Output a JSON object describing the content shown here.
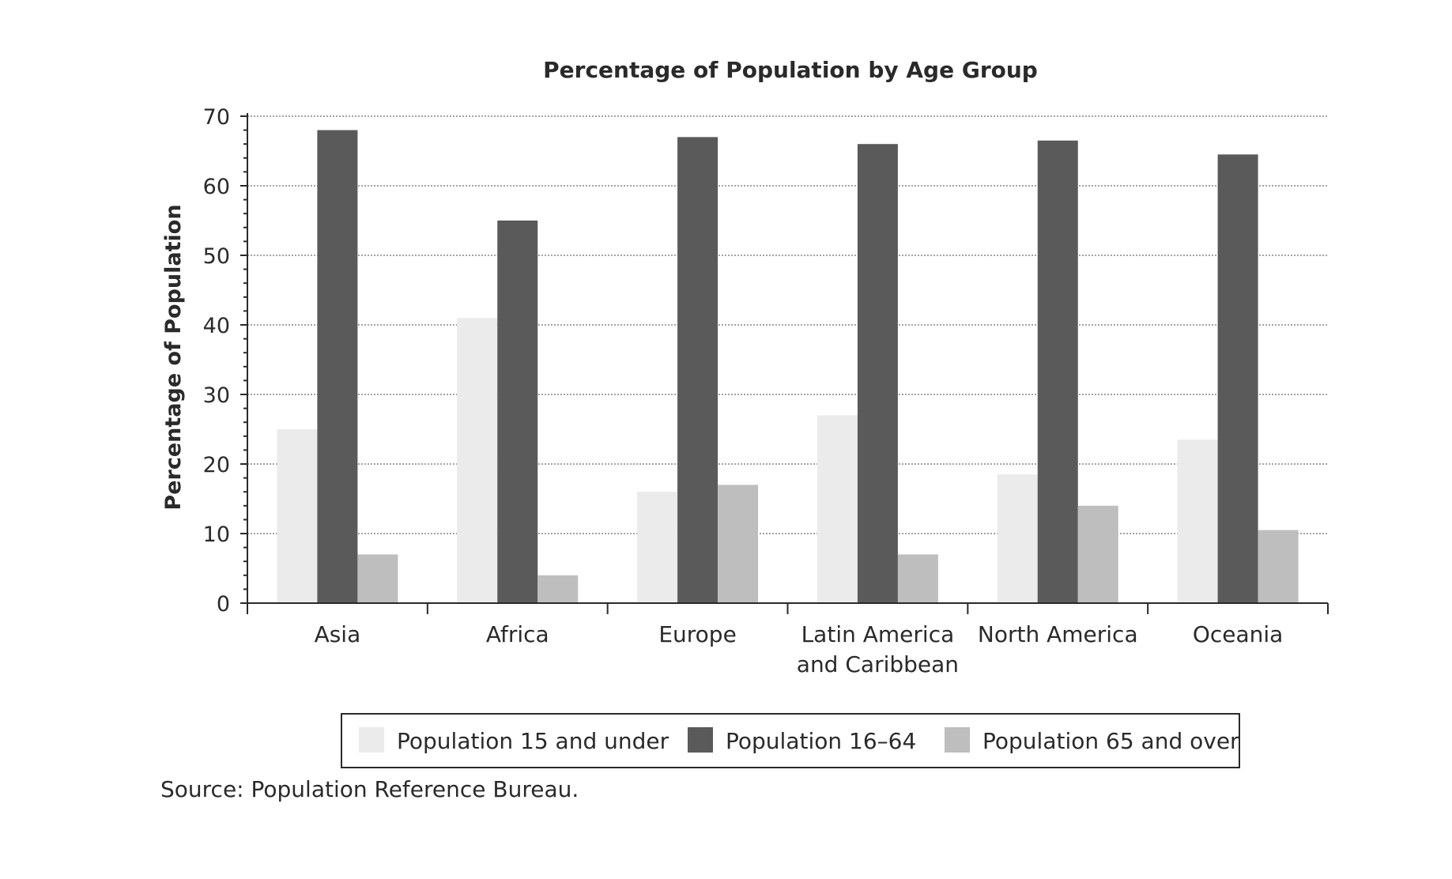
{
  "chart_data": {
    "type": "bar",
    "title": "Percentage of Population by Age Group",
    "ylabel": "Percentage of Population",
    "xlabel": "",
    "ylim": [
      0,
      70
    ],
    "yticks": [
      "0",
      "10",
      "20",
      "30",
      "40",
      "50",
      "60",
      "70"
    ],
    "grid": true,
    "legend_position": "bottom",
    "categories": [
      [
        "Asia"
      ],
      [
        "Africa"
      ],
      [
        "Europe"
      ],
      [
        "Latin America",
        "and Caribbean"
      ],
      [
        "North America"
      ],
      [
        "Oceania"
      ]
    ],
    "series": [
      {
        "name": "Population 15 and under",
        "color": "#ebebeb",
        "values": [
          25,
          41,
          16,
          27,
          18.5,
          23.5
        ]
      },
      {
        "name": "Population 16–64",
        "color": "#5a5a5a",
        "values": [
          68,
          55,
          67,
          66,
          66.5,
          64.5
        ]
      },
      {
        "name": "Population 65 and over",
        "color": "#bebebe",
        "values": [
          7,
          4,
          17,
          7,
          14,
          10.5
        ]
      }
    ],
    "source": "Source: Population Reference Bureau."
  }
}
